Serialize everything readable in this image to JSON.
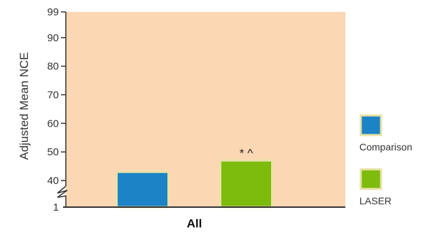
{
  "chart_data": {
    "type": "bar",
    "categories": [
      "All"
    ],
    "series": [
      {
        "name": "Comparison",
        "values": [
          43
        ],
        "color": "#1c83c6"
      },
      {
        "name": "LASER",
        "values": [
          47
        ],
        "color": "#7dbb0c"
      }
    ],
    "ylabel": "Adjusted Mean NCE",
    "xlabel": "",
    "title": "",
    "yticks": [
      1,
      40,
      50,
      60,
      70,
      80,
      90,
      99
    ],
    "ylim": [
      1,
      99
    ],
    "axis_break": true,
    "annotations": [
      {
        "series": "LASER",
        "category": "All",
        "text": "* ^"
      }
    ],
    "legend": {
      "position": "right"
    },
    "plot_background": "#fcd7b4",
    "bar_border_color": "#e8e2a6",
    "grid": false
  }
}
